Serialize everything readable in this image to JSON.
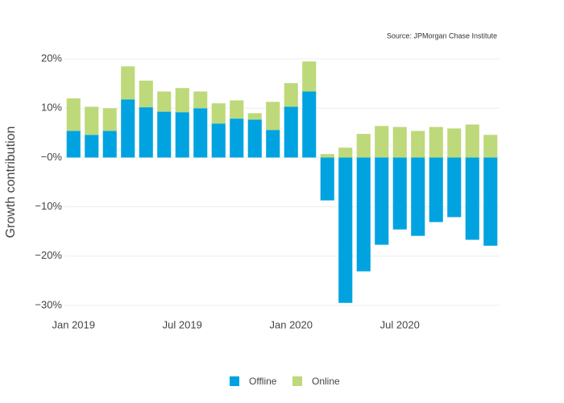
{
  "chart_data": {
    "type": "bar",
    "stacked": true,
    "source": "Source: JPMorgan Chase Institute",
    "y_axis_label": "Growth contribution",
    "categories": [
      "Jan 2019",
      null,
      null,
      null,
      null,
      null,
      "Jul 2019",
      null,
      null,
      null,
      null,
      null,
      "Jan 2020",
      null,
      null,
      null,
      null,
      null,
      "Jul 2020",
      null,
      null,
      null,
      null,
      null
    ],
    "series": [
      {
        "name": "Offline",
        "color": "#00a3e0",
        "values": [
          5.4,
          4.6,
          5.4,
          11.8,
          10.2,
          9.3,
          9.2,
          10.0,
          6.9,
          7.9,
          7.7,
          5.6,
          10.3,
          13.4,
          -8.7,
          -29.5,
          -23.1,
          -17.7,
          -14.6,
          -15.9,
          -13.1,
          -12.1,
          -16.7,
          -17.9
        ]
      },
      {
        "name": "Online",
        "color": "#bdd97a",
        "values": [
          6.6,
          5.7,
          4.6,
          6.7,
          5.4,
          4.1,
          4.9,
          3.4,
          4.1,
          3.7,
          1.3,
          5.7,
          4.8,
          6.1,
          0.7,
          2.0,
          4.8,
          6.4,
          6.2,
          5.4,
          6.2,
          5.9,
          6.7,
          4.6
        ]
      }
    ],
    "ylim": [
      -31.5,
      21.5
    ],
    "yticks": [
      {
        "value": 20,
        "label": "20%"
      },
      {
        "value": 10,
        "label": "10%"
      },
      {
        "value": 0,
        "label": "−0%"
      },
      {
        "value": -10,
        "label": "−10%"
      },
      {
        "value": -20,
        "label": "−20%"
      },
      {
        "value": -30,
        "label": "−30%"
      }
    ],
    "grid": true,
    "legend": "bottom"
  }
}
